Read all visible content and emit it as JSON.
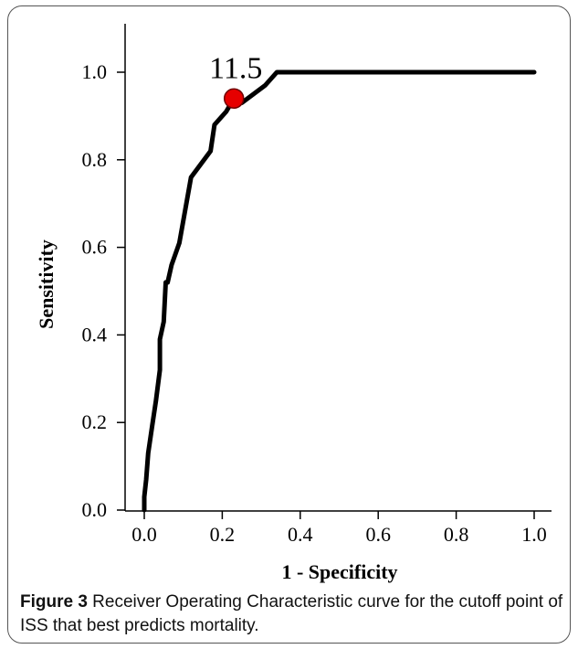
{
  "chart_data": {
    "type": "line",
    "xlabel": "1 - Specificity",
    "ylabel": "Sensitivity",
    "xlim": [
      0,
      1
    ],
    "ylim": [
      0,
      1.1
    ],
    "x_ticks": [
      "0.0",
      "0.2",
      "0.4",
      "0.6",
      "0.8",
      "1.0"
    ],
    "y_ticks": [
      "0.0",
      "0.2",
      "0.4",
      "0.6",
      "0.8",
      "1.0"
    ],
    "grid": false,
    "legend": "none",
    "series": [
      {
        "points": [
          [
            0.0,
            0.0
          ],
          [
            0.0,
            0.03
          ],
          [
            0.005,
            0.07
          ],
          [
            0.01,
            0.13
          ],
          [
            0.02,
            0.19
          ],
          [
            0.03,
            0.25
          ],
          [
            0.04,
            0.32
          ],
          [
            0.04,
            0.39
          ],
          [
            0.05,
            0.43
          ],
          [
            0.055,
            0.52
          ],
          [
            0.06,
            0.52
          ],
          [
            0.07,
            0.56
          ],
          [
            0.09,
            0.61
          ],
          [
            0.12,
            0.76
          ],
          [
            0.17,
            0.82
          ],
          [
            0.18,
            0.88
          ],
          [
            0.21,
            0.91
          ],
          [
            0.23,
            0.94
          ],
          [
            0.25,
            0.93
          ],
          [
            0.31,
            0.97
          ],
          [
            0.34,
            1.0
          ],
          [
            1.0,
            1.0
          ]
        ],
        "color": "#000000"
      }
    ],
    "cutoff_point": {
      "x": 0.23,
      "y": 0.94,
      "label": "11.5",
      "color": "#e60000"
    }
  },
  "caption": {
    "label": "Figure 3",
    "text": " Receiver Operating Characteristic curve for the cutoff point of ISS that best predicts mortality."
  }
}
